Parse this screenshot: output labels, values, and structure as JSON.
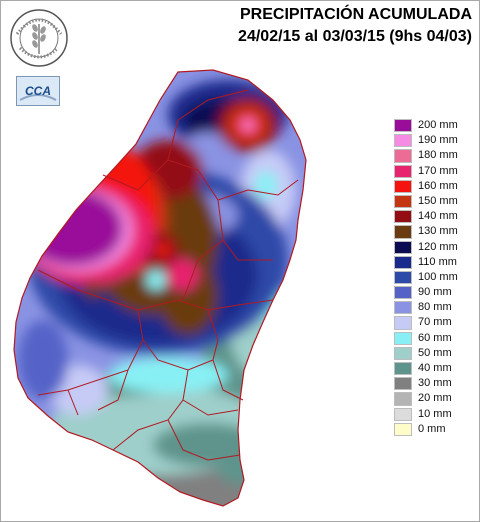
{
  "title": {
    "line1": "PRECIPITACIÓN ACUMULADA",
    "line2": "24/02/15 al 03/03/15 (9hs 04/03)"
  },
  "logos": {
    "seal_text": "BOLSA DE CEREALES DE ENTRE RIOS",
    "cca_text": "CCA"
  },
  "legend": [
    {
      "label": "200 mm",
      "color": "#9a0c9a"
    },
    {
      "label": "190 mm",
      "color": "#f58be3"
    },
    {
      "label": "180 mm",
      "color": "#ec6c95"
    },
    {
      "label": "170 mm",
      "color": "#e8246e"
    },
    {
      "label": "160 mm",
      "color": "#f4130e"
    },
    {
      "label": "150 mm",
      "color": "#c43612"
    },
    {
      "label": "140 mm",
      "color": "#930e14"
    },
    {
      "label": "130 mm",
      "color": "#6a3b10"
    },
    {
      "label": "120 mm",
      "color": "#0b0c52"
    },
    {
      "label": "110 mm",
      "color": "#1a2a8c"
    },
    {
      "label": "100 mm",
      "color": "#2d4aa8"
    },
    {
      "label": "90 mm",
      "color": "#5563c8"
    },
    {
      "label": "80 mm",
      "color": "#8a93e3"
    },
    {
      "label": "70 mm",
      "color": "#c6cbf6"
    },
    {
      "label": "60 mm",
      "color": "#88f0f4"
    },
    {
      "label": "50 mm",
      "color": "#9ecfca"
    },
    {
      "label": "40 mm",
      "color": "#5f948c"
    },
    {
      "label": "30 mm",
      "color": "#808080"
    },
    {
      "label": "20 mm",
      "color": "#b4b4b4"
    },
    {
      "label": "10 mm",
      "color": "#dcdcdc"
    },
    {
      "label": "0 mm",
      "color": "#fefcc8"
    }
  ]
}
